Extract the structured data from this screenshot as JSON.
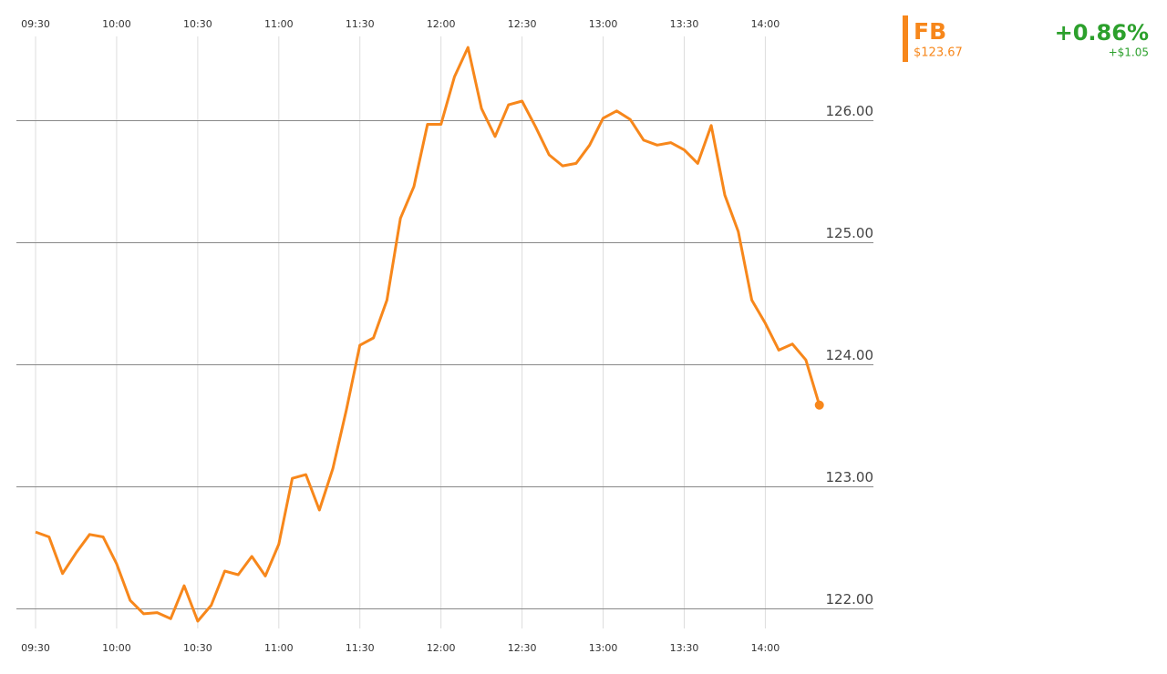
{
  "chart_data": {
    "type": "line",
    "symbol": "FB",
    "price": "$123.67",
    "change_percent": "+0.86%",
    "change": "+$1.05",
    "x": [
      "09:30",
      "09:35",
      "09:40",
      "09:45",
      "09:50",
      "09:55",
      "10:00",
      "10:05",
      "10:10",
      "10:15",
      "10:20",
      "10:25",
      "10:30",
      "10:35",
      "10:40",
      "10:45",
      "10:50",
      "10:55",
      "11:00",
      "11:05",
      "11:10",
      "11:15",
      "11:20",
      "11:25",
      "11:30",
      "11:35",
      "11:40",
      "11:45",
      "11:50",
      "11:55",
      "12:00",
      "12:05",
      "12:10",
      "12:15",
      "12:20",
      "12:25",
      "12:30",
      "12:35",
      "12:40",
      "12:45",
      "12:50",
      "12:55",
      "13:00",
      "13:05",
      "13:10",
      "13:15",
      "13:20",
      "13:25",
      "13:30",
      "13:35",
      "13:40",
      "13:45",
      "13:50",
      "13:55",
      "14:00",
      "14:05",
      "14:10",
      "14:15",
      "14:20"
    ],
    "series": [
      {
        "name": "FB",
        "color": "#f7871b",
        "values": [
          122.63,
          122.59,
          122.29,
          122.46,
          122.61,
          122.59,
          122.37,
          122.07,
          121.96,
          121.97,
          121.92,
          122.19,
          121.9,
          122.03,
          122.31,
          122.28,
          122.43,
          122.27,
          122.53,
          123.07,
          123.1,
          122.81,
          123.15,
          123.63,
          124.16,
          124.22,
          124.53,
          125.2,
          125.46,
          125.97,
          125.97,
          126.36,
          126.6,
          126.1,
          125.87,
          126.13,
          126.16,
          125.95,
          125.72,
          125.63,
          125.65,
          125.8,
          126.02,
          126.08,
          126.01,
          125.84,
          125.8,
          125.82,
          125.76,
          125.65,
          125.96,
          125.39,
          125.09,
          124.53,
          124.34,
          124.12,
          124.17,
          124.04,
          123.67
        ]
      }
    ],
    "xlim": [
      "09:30",
      "14:40"
    ],
    "xticks": [
      "09:30",
      "10:00",
      "10:30",
      "11:00",
      "11:30",
      "12:00",
      "12:30",
      "13:00",
      "13:30",
      "14:00"
    ],
    "ylim": [
      121.84,
      126.69
    ],
    "yticks": [
      {
        "value": 122,
        "label": "122.00"
      },
      {
        "value": 123,
        "label": "123.00"
      },
      {
        "value": 124,
        "label": "124.00"
      },
      {
        "value": 125,
        "label": "125.00"
      },
      {
        "value": 126,
        "label": "126.00"
      }
    ],
    "grid": true,
    "up_color": "#2ca02c"
  }
}
